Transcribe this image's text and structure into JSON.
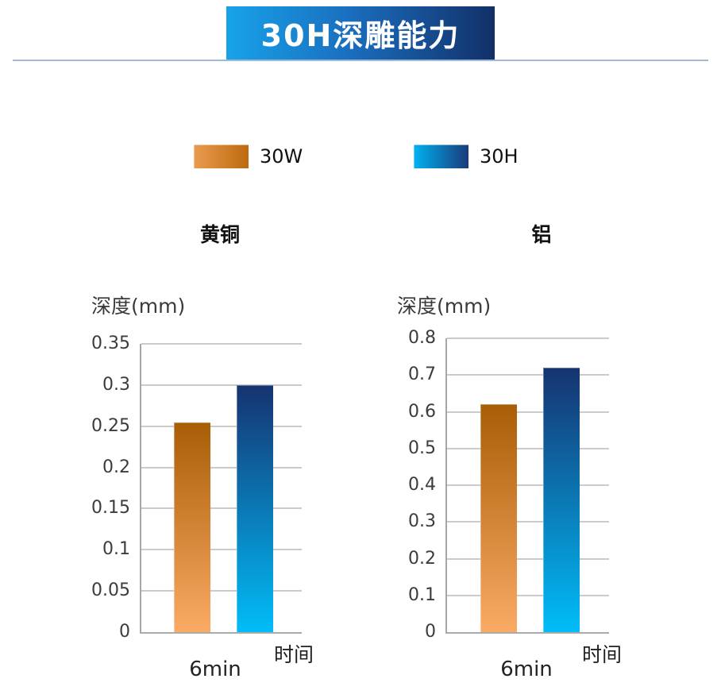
{
  "header": {
    "title": "30H深雕能力"
  },
  "theme": {
    "banner_gradient_start": "#17a3e9",
    "banner_gradient_end": "#123068",
    "divider_color": "#9fb9da",
    "gridline_color": "#cbcbcb",
    "axis_color": "#a6a6a6",
    "tick_label_color": "#3c3c3c"
  },
  "legend": {
    "items": [
      {
        "label": "30W",
        "color_start": "#ea9b4f",
        "color_end": "#bd6a0e"
      },
      {
        "label": "30H",
        "color_start": "#00b2f1",
        "color_end": "#1a3a7a"
      }
    ]
  },
  "chart_data": [
    {
      "type": "bar",
      "title": "黄铜",
      "ylabel": "深度(mm)",
      "xlabel": "时间",
      "categories": [
        "6min"
      ],
      "series": [
        {
          "name": "30W",
          "values": [
            0.255
          ],
          "gradient_top": "#a95d06",
          "gradient_bottom": "#fbaa64"
        },
        {
          "name": "30H",
          "values": [
            0.3
          ],
          "gradient_top": "#163370",
          "gradient_bottom": "#00bdf8"
        }
      ],
      "ylim": [
        0,
        0.35
      ],
      "ytick_step": 0.05,
      "yticks": [
        "0.35",
        "0.3",
        "0.25",
        "0.2",
        "0.15",
        "0.1",
        "0.05",
        "0"
      ],
      "grid": true,
      "legend_position": "top"
    },
    {
      "type": "bar",
      "title": "铝",
      "ylabel": "深度(mm)",
      "xlabel": "时间",
      "categories": [
        "6min"
      ],
      "series": [
        {
          "name": "30W",
          "values": [
            0.62
          ],
          "gradient_top": "#a95d06",
          "gradient_bottom": "#fbaa64"
        },
        {
          "name": "30H",
          "values": [
            0.72
          ],
          "gradient_top": "#163370",
          "gradient_bottom": "#00bdf8"
        }
      ],
      "ylim": [
        0,
        0.8
      ],
      "ytick_step": 0.1,
      "yticks": [
        "0.8",
        "0.7",
        "0.6",
        "0.5",
        "0.4",
        "0.3",
        "0.2",
        "0.1",
        "0"
      ],
      "grid": true,
      "legend_position": "top"
    }
  ]
}
